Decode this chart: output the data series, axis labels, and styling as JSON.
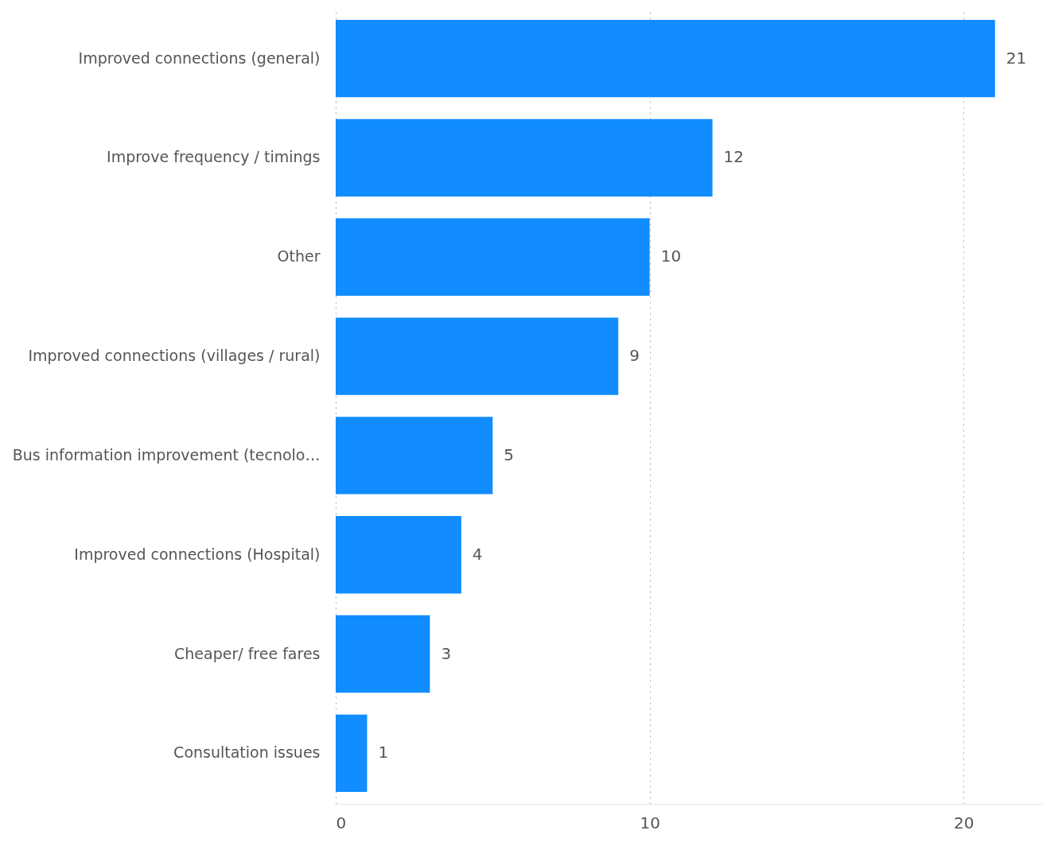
{
  "chart_data": {
    "type": "bar",
    "orientation": "horizontal",
    "categories": [
      "Improved connections (general)",
      "Improve frequency / timings",
      "Other",
      "Improved connections (villages / rural)",
      "Bus information improvement (tecnolo…",
      "Improved connections (Hospital)",
      "Cheaper/ free fares",
      "Consultation issues"
    ],
    "values": [
      21,
      12,
      10,
      9,
      5,
      4,
      3,
      1
    ],
    "color": "#118dff",
    "xlim": [
      0,
      22.5
    ],
    "xticks": [
      0,
      10,
      20
    ],
    "grid": "x",
    "data_labels": true
  }
}
